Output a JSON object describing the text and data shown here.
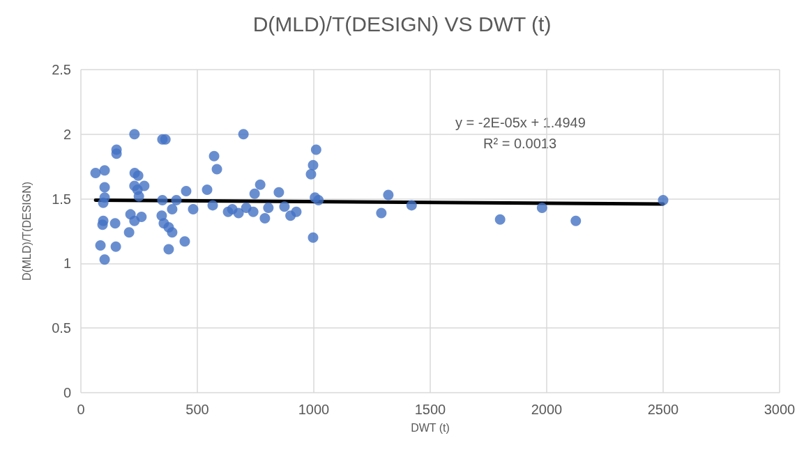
{
  "chart_data": {
    "type": "scatter",
    "title": "D(MLD)/T(DESIGN) VS DWT (t)",
    "xlabel": "DWT (t)",
    "ylabel": "D(MLD)/T(DESIGN)",
    "series": [
      {
        "color": "#4472c4",
        "marker": "circle",
        "x": [
          230,
          350,
          363,
          153,
          153,
          63,
          102,
          231,
          246,
          102,
          230,
          272,
          243,
          249,
          102,
          96,
          350,
          410,
          452,
          542,
          566,
          392,
          482,
          96,
          93,
          147,
          213,
          260,
          230,
          207,
          347,
          356,
          377,
          392,
          446,
          84,
          150,
          377,
          102,
          698,
          572,
          584,
          770,
          746,
          850,
          632,
          677,
          650,
          710,
          740,
          805,
          790,
          874,
          900,
          925,
          1010,
          997,
          988,
          1005,
          1020,
          997,
          1320,
          1290,
          1420,
          1800,
          1980,
          2125,
          2500
        ],
        "values": [
          2.0,
          1.96,
          1.96,
          1.88,
          1.85,
          1.7,
          1.72,
          1.7,
          1.68,
          1.59,
          1.6,
          1.6,
          1.57,
          1.52,
          1.51,
          1.47,
          1.49,
          1.49,
          1.56,
          1.57,
          1.45,
          1.42,
          1.42,
          1.33,
          1.3,
          1.31,
          1.38,
          1.36,
          1.33,
          1.24,
          1.37,
          1.31,
          1.28,
          1.24,
          1.17,
          1.14,
          1.13,
          1.11,
          1.03,
          2.0,
          1.83,
          1.73,
          1.61,
          1.54,
          1.55,
          1.4,
          1.39,
          1.42,
          1.43,
          1.4,
          1.43,
          1.35,
          1.44,
          1.37,
          1.4,
          1.88,
          1.76,
          1.69,
          1.51,
          1.49,
          1.2,
          1.53,
          1.39,
          1.45,
          1.34,
          1.43,
          1.33,
          1.49
        ]
      },
      {
        "type": "line",
        "color": "#000000",
        "marker": "none",
        "x": [
          63,
          2500
        ],
        "values": [
          1.49,
          1.46
        ]
      }
    ],
    "annotations": [
      "y = -2E-05x + 1.4949",
      "R² = 0.0013"
    ],
    "xlim": [
      0,
      3000
    ],
    "xticks": [
      0,
      500,
      1000,
      1500,
      2000,
      2500,
      3000
    ],
    "ylim": [
      0,
      2.5
    ],
    "yticks": [
      0,
      0.5,
      1,
      1.5,
      2,
      2.5
    ],
    "grid": true,
    "line_style": "solid"
  }
}
